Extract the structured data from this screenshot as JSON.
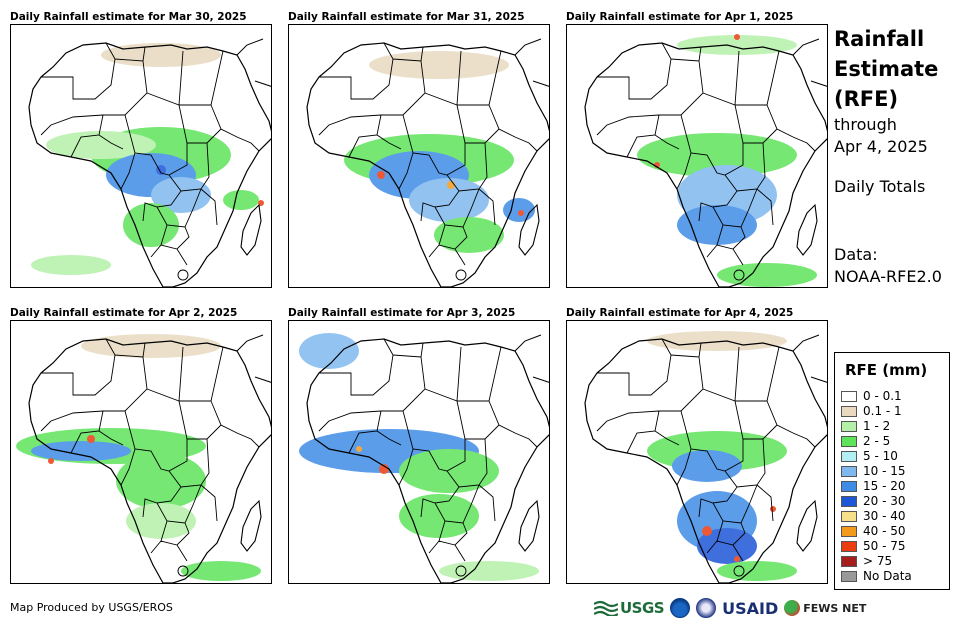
{
  "panels": [
    {
      "title": "Daily Rainfall estimate for Mar 30, 2025"
    },
    {
      "title": "Daily Rainfall estimate for Mar 31, 2025"
    },
    {
      "title": "Daily Rainfall estimate for Apr 1, 2025"
    },
    {
      "title": "Daily Rainfall estimate for Apr 2, 2025"
    },
    {
      "title": "Daily Rainfall estimate for Apr 3, 2025"
    },
    {
      "title": "Daily Rainfall estimate for Apr 4, 2025"
    }
  ],
  "side": {
    "title_line1": "Rainfall",
    "title_line2": "Estimate",
    "title_line3": "(RFE)",
    "through": "through",
    "date": "Apr 4, 2025",
    "totals": "Daily Totals",
    "data_label": "Data:",
    "data_source": "NOAA-RFE2.0"
  },
  "legend": {
    "title": "RFE (mm)",
    "items": [
      {
        "label": "0 - 0.1",
        "color": "#ffffff"
      },
      {
        "label": "0.1 - 1",
        "color": "#e8d9bf"
      },
      {
        "label": "1 - 2",
        "color": "#b4f0a8"
      },
      {
        "label": "2 - 5",
        "color": "#5ee35a"
      },
      {
        "label": "5 - 10",
        "color": "#b3eef5"
      },
      {
        "label": "10 - 15",
        "color": "#7fb8ee"
      },
      {
        "label": "15 - 20",
        "color": "#3f8ce6"
      },
      {
        "label": "20 - 30",
        "color": "#1d57d6"
      },
      {
        "label": "30 - 40",
        "color": "#f7e08a"
      },
      {
        "label": "40 - 50",
        "color": "#f39a1c"
      },
      {
        "label": "50 - 75",
        "color": "#ec3d12"
      },
      {
        "label": "> 75",
        "color": "#a51d1d"
      },
      {
        "label": "No Data",
        "color": "#999999"
      }
    ]
  },
  "credit": "Map Produced by USGS/EROS",
  "logos": {
    "usgs": "USGS",
    "usaid": "USAID",
    "fews": "FEWS NET"
  }
}
